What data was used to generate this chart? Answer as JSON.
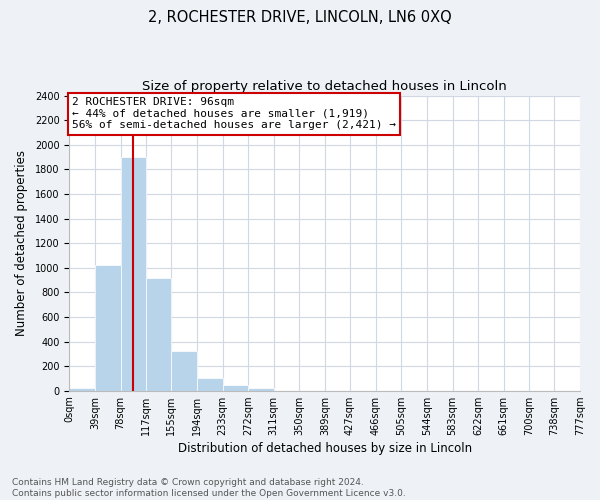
{
  "title": "2, ROCHESTER DRIVE, LINCOLN, LN6 0XQ",
  "subtitle": "Size of property relative to detached houses in Lincoln",
  "xlabel": "Distribution of detached houses by size in Lincoln",
  "ylabel": "Number of detached properties",
  "bin_edges": [
    0,
    39,
    78,
    117,
    155,
    194,
    233,
    272,
    311,
    350,
    389,
    427,
    466,
    505,
    544,
    583,
    622,
    661,
    700,
    738,
    777
  ],
  "bin_labels": [
    "0sqm",
    "39sqm",
    "78sqm",
    "117sqm",
    "155sqm",
    "194sqm",
    "233sqm",
    "272sqm",
    "311sqm",
    "350sqm",
    "389sqm",
    "427sqm",
    "466sqm",
    "505sqm",
    "544sqm",
    "583sqm",
    "622sqm",
    "661sqm",
    "700sqm",
    "738sqm",
    "777sqm"
  ],
  "counts": [
    20,
    1020,
    1900,
    920,
    320,
    105,
    50,
    20,
    0,
    0,
    0,
    0,
    0,
    0,
    0,
    0,
    0,
    0,
    0,
    0
  ],
  "bar_color": "#b8d4ea",
  "property_line_x": 96,
  "property_line_color": "#cc0000",
  "annotation_text_line1": "2 ROCHESTER DRIVE: 96sqm",
  "annotation_text_line2": "← 44% of detached houses are smaller (1,919)",
  "annotation_text_line3": "56% of semi-detached houses are larger (2,421) →",
  "ylim": [
    0,
    2400
  ],
  "yticks": [
    0,
    200,
    400,
    600,
    800,
    1000,
    1200,
    1400,
    1600,
    1800,
    2000,
    2200,
    2400
  ],
  "footnote1": "Contains HM Land Registry data © Crown copyright and database right 2024.",
  "footnote2": "Contains public sector information licensed under the Open Government Licence v3.0.",
  "bg_color": "#eef2f6",
  "plot_bg_color": "#ffffff",
  "grid_color": "#d0d8e4",
  "title_fontsize": 10.5,
  "subtitle_fontsize": 9.5,
  "axis_label_fontsize": 8.5,
  "tick_fontsize": 7,
  "annotation_fontsize": 8,
  "footnote_fontsize": 6.5
}
